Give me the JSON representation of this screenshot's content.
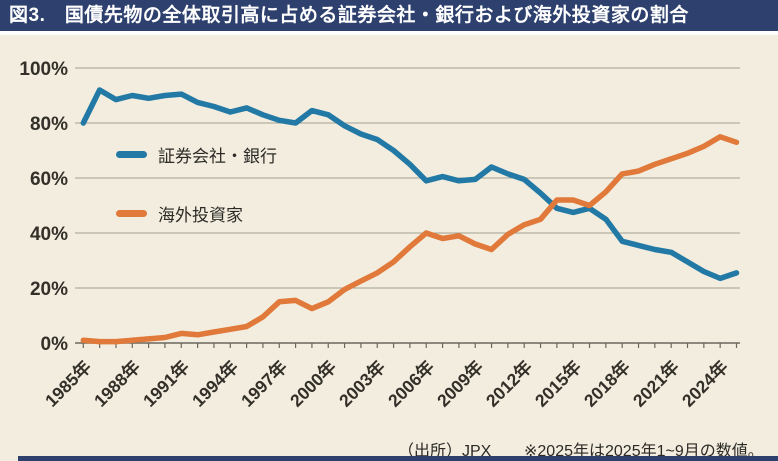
{
  "header": {
    "title": "図3.　国債先物の全体取引高に占める証券会社・銀行および海外投資家の割合"
  },
  "footer": {
    "source": "（出所）JPX",
    "note": "※2025年は2025年1~9月の数値。"
  },
  "colors": {
    "title_bar": "#2d406e",
    "background": "#f2edde"
  },
  "chart_data": {
    "type": "line",
    "title": "国債先物の全体取引高に占める証券会社・銀行および海外投資家の割合",
    "x": [
      1985,
      1986,
      1987,
      1988,
      1989,
      1990,
      1991,
      1992,
      1993,
      1994,
      1995,
      1996,
      1997,
      1998,
      1999,
      2000,
      2001,
      2002,
      2003,
      2004,
      2005,
      2006,
      2007,
      2008,
      2009,
      2010,
      2011,
      2012,
      2013,
      2014,
      2015,
      2016,
      2017,
      2018,
      2019,
      2020,
      2021,
      2022,
      2023,
      2024,
      2025
    ],
    "series": [
      {
        "name": "証券会社・銀行",
        "color": "#2279a5",
        "values": [
          80,
          92,
          88.5,
          90,
          89,
          90,
          90.5,
          87.5,
          86,
          84,
          85.5,
          83,
          81,
          80,
          84.5,
          83,
          79,
          76,
          74,
          70,
          65,
          59,
          60.5,
          59,
          59.5,
          64,
          61.5,
          59.5,
          54.5,
          49,
          47.5,
          49,
          45,
          37,
          35.5,
          34,
          33,
          29.5,
          26,
          23.5,
          25.5
        ]
      },
      {
        "name": "海外投資家",
        "color": "#e0793a",
        "values": [
          1,
          0.5,
          0.5,
          1,
          1.5,
          2,
          3.5,
          3,
          4,
          5,
          6,
          9.5,
          15,
          15.5,
          12.5,
          15,
          19.5,
          22.5,
          25.5,
          29.5,
          35,
          40,
          38,
          39,
          36,
          34,
          39.5,
          43,
          45,
          52,
          52,
          50,
          55,
          61.5,
          62.5,
          65,
          67,
          69,
          71.5,
          75,
          73
        ]
      }
    ],
    "ylim": [
      0,
      100
    ],
    "yticks": [
      0,
      20,
      40,
      60,
      80,
      100
    ],
    "ytick_labels": [
      "0%",
      "20%",
      "40%",
      "60%",
      "80%",
      "100%"
    ],
    "xtick_years": [
      1985,
      1988,
      1991,
      1994,
      1997,
      2000,
      2003,
      2006,
      2009,
      2012,
      2015,
      2018,
      2021,
      2024
    ],
    "xtick_labels": [
      "1985年",
      "1988年",
      "1991年",
      "1994年",
      "1997年",
      "2000年",
      "2003年",
      "2006年",
      "2009年",
      "2012年",
      "2015年",
      "2018年",
      "2021年",
      "2024年"
    ],
    "grid": true,
    "legend_position": "upper-left-inside",
    "axis_colors": {
      "grid": "#a39f93",
      "axis": "#6b675d",
      "text": "#33302a"
    }
  }
}
